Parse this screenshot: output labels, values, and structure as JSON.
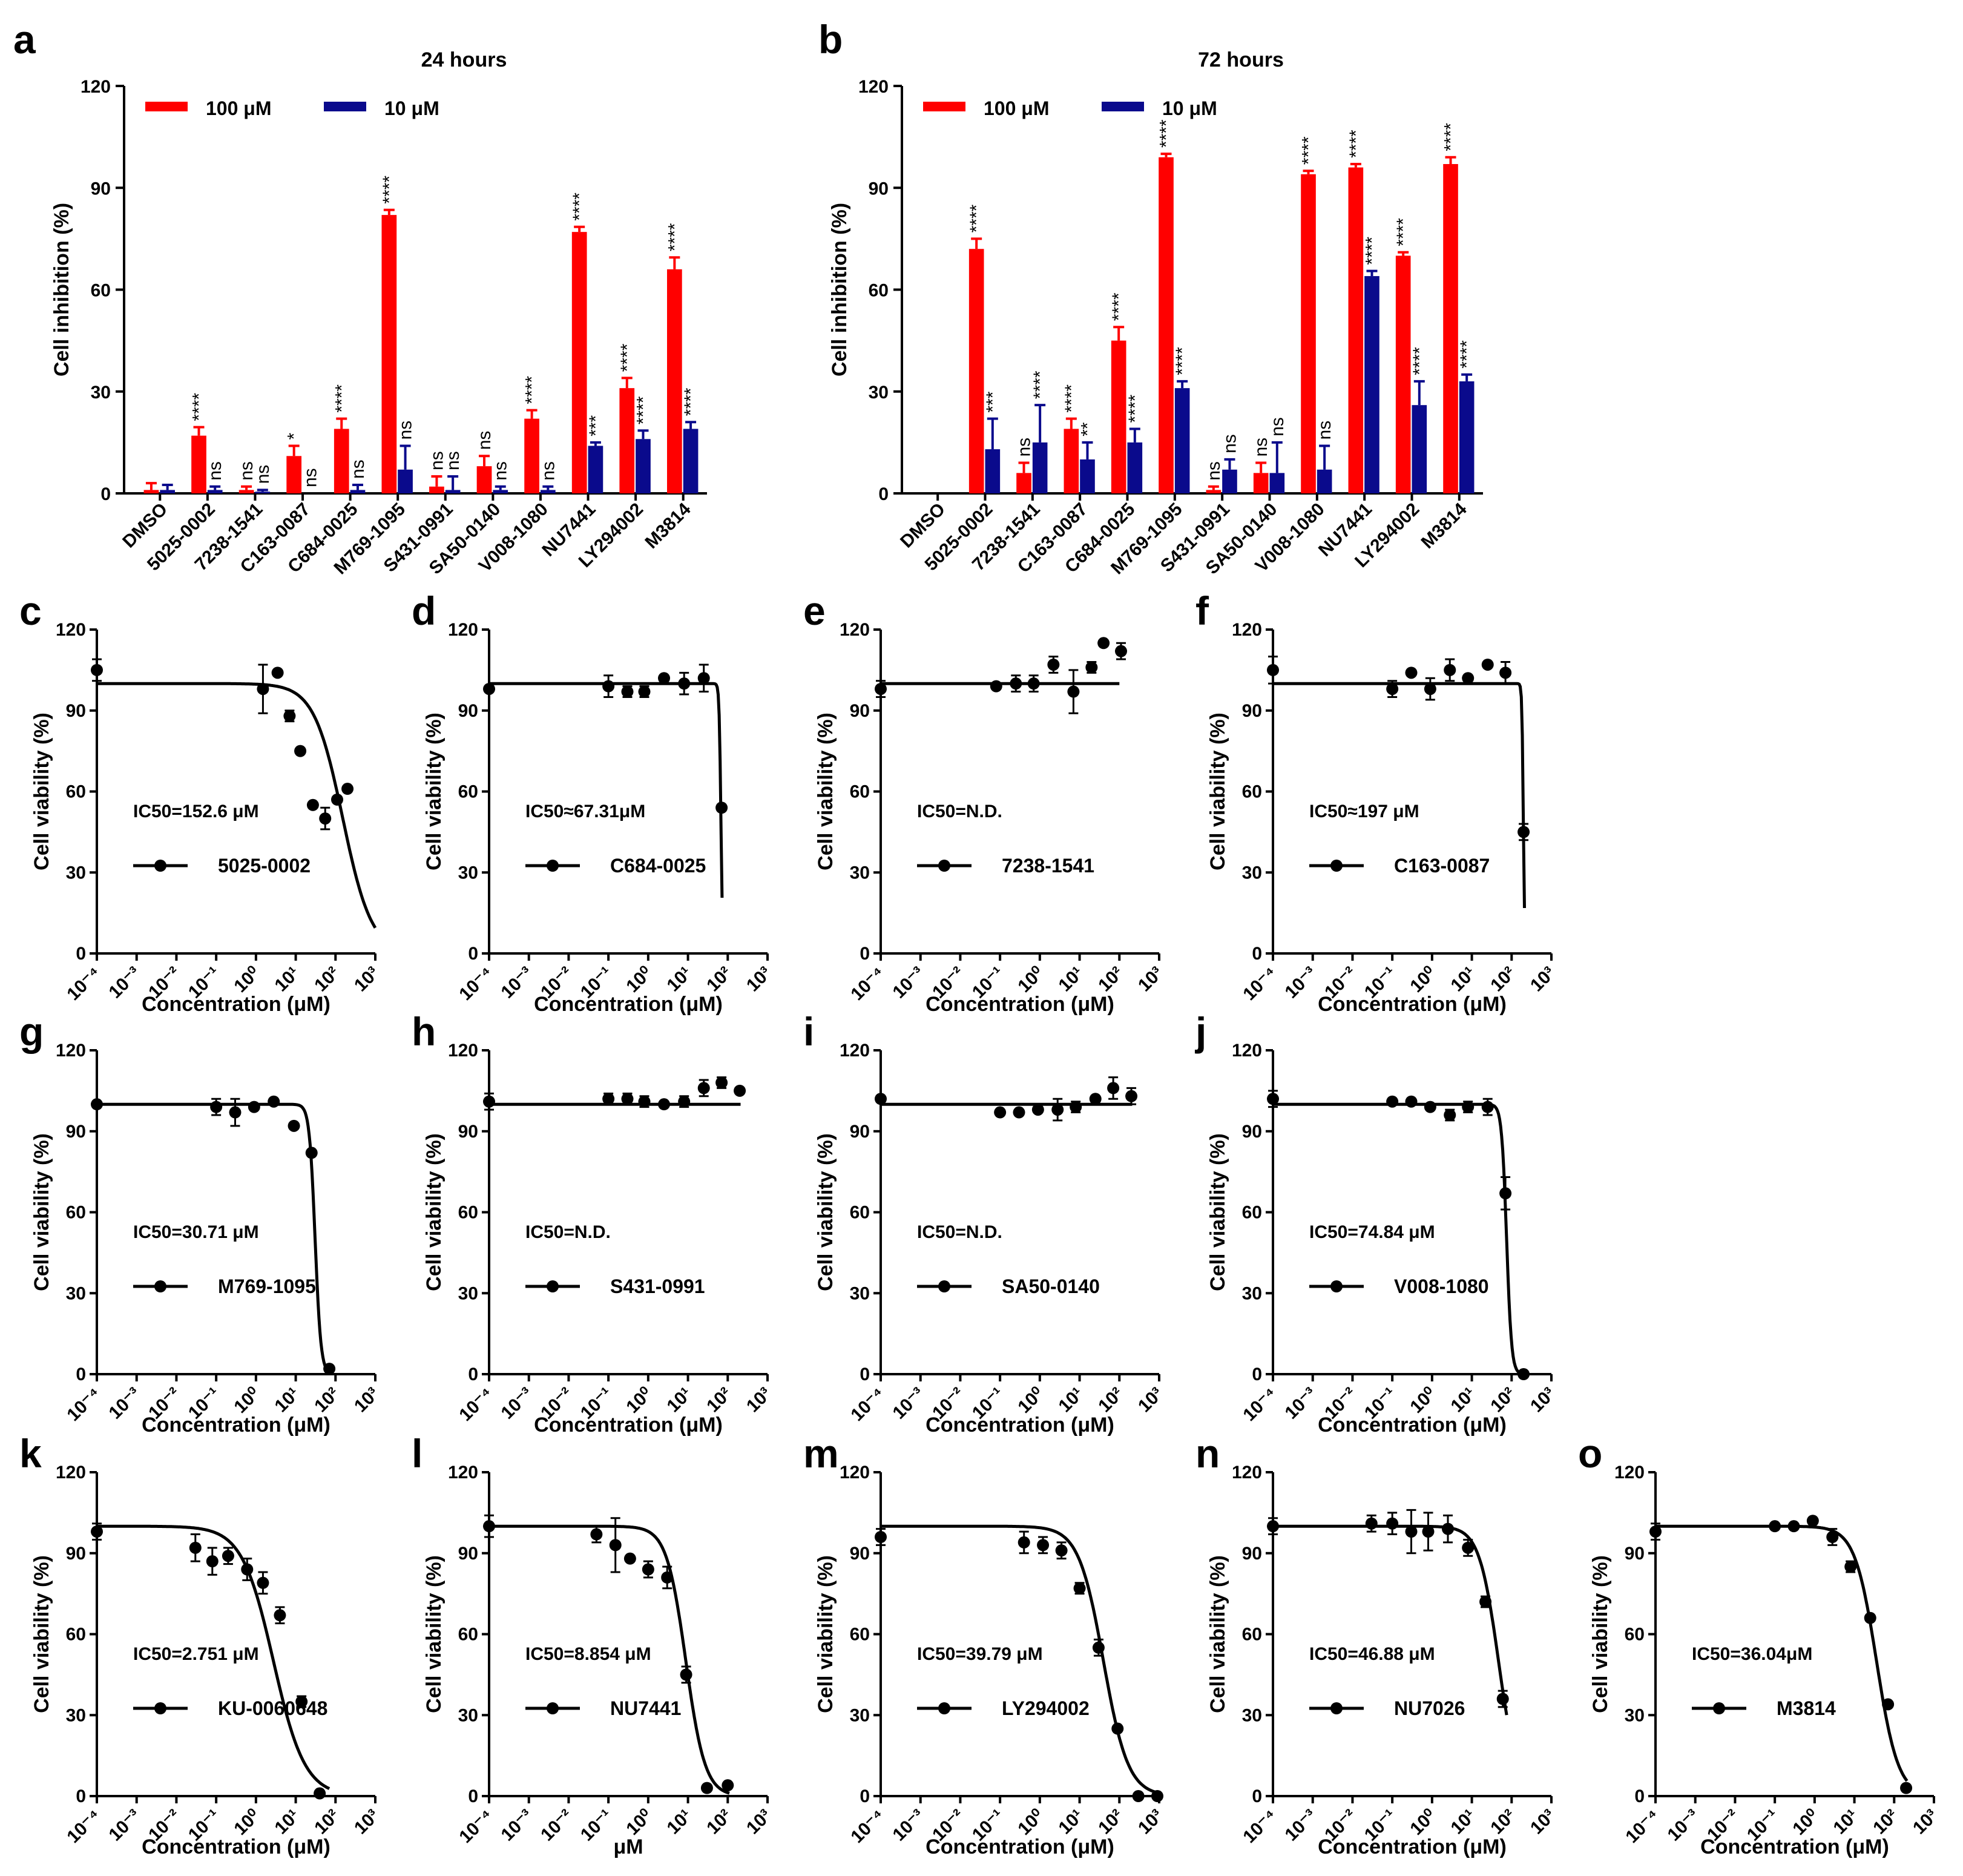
{
  "colors": {
    "high": "#ff0000",
    "low": "#0a0a8c",
    "curve": "#000000"
  },
  "chart_data": [
    {
      "panel": "a",
      "type": "bar",
      "title": "24 hours",
      "ylabel": "Cell inhibition (%)",
      "ylim": [
        0,
        120
      ],
      "yticks": [
        "0",
        "30",
        "60",
        "90",
        "120"
      ],
      "categories": [
        "DMSO",
        "5025-0002",
        "7238-1541",
        "C163-0087",
        "C684-0025",
        "M769-1095",
        "S431-0991",
        "SA50-0140",
        "V008-1080",
        "NU7441",
        "LY294002",
        "M3814"
      ],
      "series": [
        {
          "name": "100 μM",
          "color": "#ff0000",
          "values": [
            1,
            17,
            1,
            11,
            19,
            82,
            2,
            8,
            22,
            77,
            31,
            66
          ],
          "errors": [
            2,
            2.5,
            1,
            3,
            3,
            1.5,
            3,
            3,
            2.5,
            1.5,
            3,
            3.5
          ],
          "sig": [
            "",
            "****",
            "ns",
            "*",
            "****",
            "****",
            "ns",
            "ns",
            "****",
            "****",
            "****",
            "****"
          ]
        },
        {
          "name": "10 μM",
          "color": "#0a0a8c",
          "values": [
            1,
            1,
            0.5,
            0,
            1,
            7,
            1,
            1,
            1,
            14,
            16,
            19
          ],
          "errors": [
            1.5,
            1,
            0.5,
            0,
            1.5,
            7,
            4,
            1,
            1,
            1,
            2.5,
            2
          ],
          "sig": [
            "",
            "ns",
            "ns",
            "ns",
            "ns",
            "ns",
            "ns",
            "ns",
            "ns",
            "***",
            "****",
            "****"
          ]
        }
      ]
    },
    {
      "panel": "b",
      "type": "bar",
      "title": "72 hours",
      "ylabel": "Cell inhibition (%)",
      "ylim": [
        0,
        120
      ],
      "yticks": [
        "0",
        "30",
        "60",
        "90",
        "120"
      ],
      "categories": [
        "DMSO",
        "5025-0002",
        "7238-1541",
        "C163-0087",
        "C684-0025",
        "M769-1095",
        "S431-0991",
        "SA50-0140",
        "V008-1080",
        "NU7441",
        "LY294002",
        "M3814"
      ],
      "series": [
        {
          "name": "100 μM",
          "color": "#ff0000",
          "values": [
            0,
            72,
            6,
            19,
            45,
            99,
            1,
            6,
            94,
            96,
            70,
            97
          ],
          "errors": [
            0,
            3,
            3,
            3,
            4,
            1,
            1,
            3,
            1,
            1,
            1,
            2
          ],
          "sig": [
            "",
            "****",
            "ns",
            "****",
            "****",
            "****",
            "ns",
            "ns",
            "****",
            "****",
            "****",
            "****"
          ]
        },
        {
          "name": "10 μM",
          "color": "#0a0a8c",
          "values": [
            0,
            13,
            15,
            10,
            15,
            31,
            7,
            6,
            7,
            64,
            26,
            33
          ],
          "errors": [
            0,
            9,
            11,
            5,
            4,
            2,
            3,
            9,
            7,
            1.5,
            7,
            2
          ],
          "sig": [
            "",
            "***",
            "****",
            "**",
            "****",
            "****",
            "ns",
            "ns",
            "ns",
            "****",
            "****",
            "****"
          ]
        }
      ]
    },
    {
      "panel": "c",
      "type": "scatter",
      "compound": "5025-0002",
      "ic50": "IC50=152.6 μM",
      "xlabel": "Concentration (μM)",
      "ylabel": "Cell viability (%)",
      "xlim": [
        0.0001,
        1000
      ],
      "ylim": [
        0,
        120
      ],
      "yticks": [
        "0",
        "30",
        "60",
        "90",
        "120"
      ],
      "xticks": [
        "10⁻⁴",
        "10⁻³",
        "10⁻²",
        "10⁻¹",
        "10⁰",
        "10¹",
        "10²",
        "10³"
      ],
      "x": [
        0.0001,
        1.5,
        3.5,
        7,
        13,
        27,
        55,
        110,
        200
      ],
      "y": [
        105,
        98,
        104,
        88,
        75,
        55,
        50,
        57,
        61
      ],
      "err": [
        4,
        9,
        0,
        2,
        0,
        0,
        4,
        0,
        0
      ],
      "curve": {
        "ic50": 152.6,
        "hill": 1.2
      }
    },
    {
      "panel": "d",
      "type": "scatter",
      "compound": "C684-0025",
      "ic50": "IC50≈67.31μM",
      "xlabel": "Concentration (μM)",
      "ylabel": "Cell viability (%)",
      "xlim": [
        0.0001,
        1000
      ],
      "ylim": [
        0,
        120
      ],
      "yticks": [
        "0",
        "30",
        "60",
        "90",
        "120"
      ],
      "xticks": [
        "10⁻⁴",
        "10⁻³",
        "10⁻²",
        "10⁻¹",
        "10⁰",
        "10¹",
        "10²",
        "10³"
      ],
      "x": [
        0.0001,
        0.1,
        0.3,
        0.8,
        2.5,
        8,
        25,
        70
      ],
      "y": [
        98,
        99,
        97,
        97,
        102,
        100,
        102,
        54
      ],
      "err": [
        0,
        4,
        2,
        2,
        0,
        4,
        5,
        0
      ],
      "curve": {
        "ic50": 67.31,
        "hill": 20,
        "xmax": 72
      }
    },
    {
      "panel": "e",
      "type": "scatter",
      "compound": "7238-1541",
      "ic50": "IC50=N.D.",
      "xlabel": "Concentration (μM)",
      "ylabel": "Cell viability (%)",
      "xlim": [
        0.0001,
        1000
      ],
      "ylim": [
        0,
        120
      ],
      "yticks": [
        "0",
        "30",
        "60",
        "90",
        "120"
      ],
      "xticks": [
        "10⁻⁴",
        "10⁻³",
        "10⁻²",
        "10⁻¹",
        "10⁰",
        "10¹",
        "10²",
        "10³"
      ],
      "x": [
        0.0001,
        0.08,
        0.25,
        0.7,
        2.2,
        7,
        20,
        40,
        110
      ],
      "y": [
        98,
        99,
        100,
        100,
        107,
        97,
        106,
        115,
        112
      ],
      "err": [
        3,
        0,
        3,
        3,
        3,
        8,
        2,
        0,
        3
      ],
      "curve": {
        "flat": 100,
        "xmax": 100
      }
    },
    {
      "panel": "f",
      "type": "scatter",
      "compound": "C163-0087",
      "ic50": "IC50≈197 μM",
      "xlabel": "Concentration (μM)",
      "ylabel": "Cell viability (%)",
      "xlim": [
        0.0001,
        1000
      ],
      "ylim": [
        0,
        120
      ],
      "yticks": [
        "0",
        "30",
        "60",
        "90",
        "120"
      ],
      "xticks": [
        "10⁻⁴",
        "10⁻³",
        "10⁻²",
        "10⁻¹",
        "10⁰",
        "10¹",
        "10²",
        "10³"
      ],
      "x": [
        0.0001,
        0.1,
        0.3,
        0.9,
        2.8,
        8,
        25,
        70,
        200
      ],
      "y": [
        105,
        98,
        104,
        98,
        105,
        102,
        107,
        104,
        45
      ],
      "err": [
        5,
        3,
        0,
        4,
        4,
        0,
        0,
        4,
        3
      ],
      "curve": {
        "ic50": 197,
        "hill": 25,
        "xmax": 210
      }
    },
    {
      "panel": "g",
      "type": "scatter",
      "compound": "M769-1095",
      "ic50": "IC50=30.71 μM",
      "xlabel": "Concentration (μM)",
      "ylabel": "Cell viability (%)",
      "xlim": [
        0.0001,
        1000
      ],
      "ylim": [
        0,
        120
      ],
      "yticks": [
        "0",
        "30",
        "60",
        "90",
        "120"
      ],
      "xticks": [
        "10⁻⁴",
        "10⁻³",
        "10⁻²",
        "10⁻¹",
        "10⁰",
        "10¹",
        "10²",
        "10³"
      ],
      "x": [
        0.0001,
        0.1,
        0.3,
        0.9,
        2.8,
        9,
        25,
        70
      ],
      "y": [
        100,
        99,
        97,
        99,
        101,
        92,
        82,
        2
      ],
      "err": [
        0,
        3,
        5,
        0,
        0,
        0,
        0,
        0
      ],
      "curve": {
        "ic50": 30.71,
        "hill": 6,
        "xmax": 80
      }
    },
    {
      "panel": "h",
      "type": "scatter",
      "compound": "S431-0991",
      "ic50": "IC50=N.D.",
      "xlabel": "Concentration (μM)",
      "ylabel": "Cell viability (%)",
      "xlim": [
        0.0001,
        1000
      ],
      "ylim": [
        0,
        120
      ],
      "yticks": [
        "0",
        "30",
        "60",
        "90",
        "120"
      ],
      "xticks": [
        "10⁻⁴",
        "10⁻³",
        "10⁻²",
        "10⁻¹",
        "10⁰",
        "10¹",
        "10²",
        "10³"
      ],
      "x": [
        0.0001,
        0.1,
        0.3,
        0.8,
        2.5,
        8,
        25,
        70,
        200
      ],
      "y": [
        101,
        102,
        102,
        101,
        100,
        101,
        106,
        108,
        105
      ],
      "err": [
        3,
        2,
        2,
        2,
        0,
        2,
        3,
        2,
        0
      ],
      "curve": {
        "flat": 100,
        "xmax": 210
      }
    },
    {
      "panel": "i",
      "type": "scatter",
      "compound": "SA50-0140",
      "ic50": "IC50=N.D.",
      "xlabel": "Concentration (μM)",
      "ylabel": "Cell viability (%)",
      "xlim": [
        0.0001,
        1000
      ],
      "ylim": [
        0,
        120
      ],
      "yticks": [
        "0",
        "30",
        "60",
        "90",
        "120"
      ],
      "xticks": [
        "10⁻⁴",
        "10⁻³",
        "10⁻²",
        "10⁻¹",
        "10⁰",
        "10¹",
        "10²",
        "10³"
      ],
      "x": [
        0.0001,
        0.1,
        0.3,
        0.9,
        2.8,
        8,
        25,
        70,
        200
      ],
      "y": [
        102,
        97,
        97,
        98,
        98,
        99,
        102,
        106,
        103
      ],
      "err": [
        0,
        0,
        0,
        0,
        4,
        2,
        0,
        4,
        3
      ],
      "curve": {
        "flat": 100,
        "xmax": 210
      }
    },
    {
      "panel": "j",
      "type": "scatter",
      "compound": "V008-1080",
      "ic50": "IC50=74.84 μM",
      "xlabel": "Concentration (μM)",
      "ylabel": "Cell viability (%)",
      "xlim": [
        0.0001,
        1000
      ],
      "ylim": [
        0,
        120
      ],
      "yticks": [
        "0",
        "30",
        "60",
        "90",
        "120"
      ],
      "xticks": [
        "10⁻⁴",
        "10⁻³",
        "10⁻²",
        "10⁻¹",
        "10⁰",
        "10¹",
        "10²",
        "10³"
      ],
      "x": [
        0.0001,
        0.1,
        0.3,
        0.9,
        2.8,
        8,
        25,
        70,
        200
      ],
      "y": [
        102,
        101,
        101,
        99,
        96,
        99,
        99,
        67,
        0
      ],
      "err": [
        3,
        0,
        0,
        0,
        2,
        2,
        3,
        6,
        0
      ],
      "curve": {
        "ic50": 74.84,
        "hill": 7,
        "xmax": 200
      }
    },
    {
      "panel": "k",
      "type": "scatter",
      "compound": "KU-0060648",
      "ic50": "IC50=2.751 μM",
      "xlabel": "Concentration (μM)",
      "ylabel": "Cell viability (%)",
      "xlim": [
        0.0001,
        1000
      ],
      "ylim": [
        0,
        120
      ],
      "yticks": [
        "0",
        "30",
        "60",
        "90",
        "120"
      ],
      "xticks": [
        "10⁻⁴",
        "10⁻³",
        "10⁻²",
        "10⁻¹",
        "10⁰",
        "10¹",
        "10²",
        "10³"
      ],
      "x": [
        0.0001,
        0.03,
        0.08,
        0.2,
        0.6,
        1.5,
        4,
        14,
        40
      ],
      "y": [
        98,
        92,
        87,
        89,
        84,
        79,
        67,
        35,
        1
      ],
      "err": [
        3,
        5,
        5,
        3,
        4,
        4,
        3,
        2,
        0
      ],
      "curve": {
        "ic50": 2.751,
        "hill": 1.1,
        "xmax": 70
      }
    },
    {
      "panel": "l",
      "type": "scatter",
      "compound": "NU7441",
      "ic50": "IC50=8.854 μM",
      "xlabel": "μM",
      "ylabel": "Cell viability (%)",
      "xlim": [
        0.0001,
        1000
      ],
      "ylim": [
        0,
        120
      ],
      "yticks": [
        "0",
        "30",
        "60",
        "90",
        "120"
      ],
      "xticks": [
        "10⁻⁴",
        "10⁻³",
        "10⁻²",
        "10⁻¹",
        "10⁰",
        "10¹",
        "10²",
        "10³"
      ],
      "x": [
        0.0001,
        0.05,
        0.15,
        0.35,
        1,
        3,
        9,
        30,
        100
      ],
      "y": [
        100,
        97,
        93,
        88,
        84,
        81,
        45,
        3,
        4
      ],
      "err": [
        4,
        3,
        10,
        0,
        3,
        4,
        3,
        0,
        0
      ],
      "curve": {
        "ic50": 8.854,
        "hill": 1.8,
        "xmax": 110
      }
    },
    {
      "panel": "m",
      "type": "scatter",
      "compound": "LY294002",
      "ic50": "IC50=39.79 μM",
      "xlabel": "Concentration (μM)",
      "ylabel": "Cell viability (%)",
      "xlim": [
        0.0001,
        1000
      ],
      "ylim": [
        0,
        120
      ],
      "yticks": [
        "0",
        "30",
        "60",
        "90",
        "120"
      ],
      "xticks": [
        "10⁻⁴",
        "10⁻³",
        "10⁻²",
        "10⁻¹",
        "10⁰",
        "10¹",
        "10²",
        "10³"
      ],
      "x": [
        0.0001,
        0.4,
        1.2,
        3.5,
        10,
        30,
        90,
        300,
        900
      ],
      "y": [
        96,
        94,
        93,
        91,
        77,
        55,
        25,
        0,
        0
      ],
      "err": [
        3,
        4,
        3,
        3,
        2,
        3,
        0,
        0,
        0
      ],
      "curve": {
        "ic50": 39.79,
        "hill": 1.4,
        "xmax": 1000
      }
    },
    {
      "panel": "n",
      "type": "scatter",
      "compound": "NU7026",
      "ic50": "IC50=46.88 μM",
      "xlabel": "Concentration (μM)",
      "ylabel": "Cell viability (%)",
      "xlim": [
        0.0001,
        1000
      ],
      "ylim": [
        0,
        120
      ],
      "yticks": [
        "0",
        "30",
        "60",
        "90",
        "120"
      ],
      "xticks": [
        "10⁻⁴",
        "10⁻³",
        "10⁻²",
        "10⁻¹",
        "10⁰",
        "10¹",
        "10²",
        "10³"
      ],
      "x": [
        0.0001,
        0.03,
        0.1,
        0.3,
        0.8,
        2.5,
        8,
        22,
        60
      ],
      "y": [
        100,
        101,
        101,
        98,
        98,
        99,
        92,
        72,
        36
      ],
      "err": [
        3,
        3,
        4,
        8,
        7,
        5,
        3,
        2,
        3
      ],
      "curve": {
        "ic50": 46.88,
        "hill": 1.8,
        "xmax": 75
      }
    },
    {
      "panel": "o",
      "type": "scatter",
      "compound": "M3814",
      "ic50": "IC50=36.04μM",
      "xlabel": "Concentration (μM)",
      "ylabel": "Cell viability (%)",
      "xlim": [
        0.0001,
        1000
      ],
      "ylim": [
        0,
        120
      ],
      "yticks": [
        "0",
        "30",
        "60",
        "90",
        "120"
      ],
      "xticks": [
        "10⁻⁴",
        "10⁻³",
        "10⁻²",
        "10⁻¹",
        "10⁰",
        "10¹",
        "10²",
        "10³"
      ],
      "x": [
        0.0001,
        0.1,
        0.3,
        0.9,
        2.8,
        8,
        25,
        70,
        200
      ],
      "y": [
        98,
        100,
        100,
        102,
        96,
        85,
        66,
        34,
        3
      ],
      "err": [
        3,
        0,
        0,
        0,
        3,
        2,
        0,
        0,
        0
      ],
      "curve": {
        "ic50": 36.04,
        "hill": 1.6,
        "xmax": 210
      }
    }
  ]
}
